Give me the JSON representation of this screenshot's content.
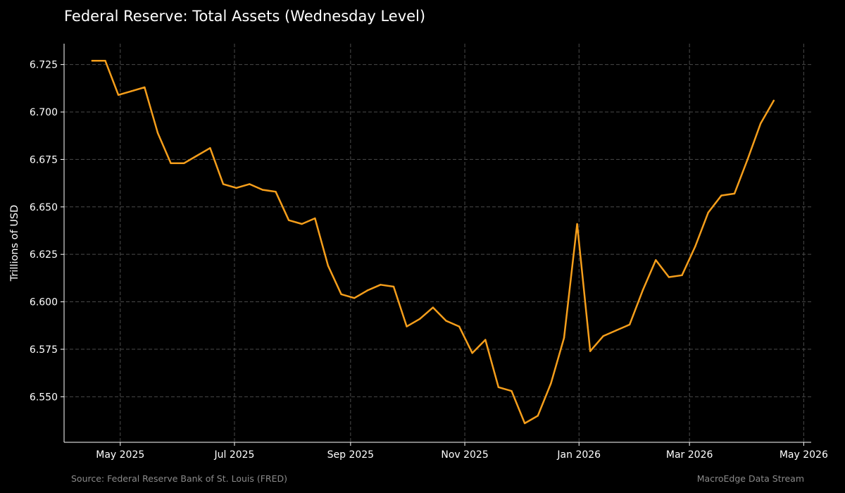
{
  "title": "Federal Reserve: Total Assets (Wednesday Level)",
  "source": "Source: Federal Reserve Bank of St. Louis (FRED)",
  "brand": "MacroEdge Data Stream",
  "colors": {
    "background": "#000000",
    "line": "#f59e1b",
    "grid": "#4a4a4a",
    "axis": "#ffffff",
    "footer_text": "#8a8a8a"
  },
  "chart_data": {
    "type": "line",
    "title": "Federal Reserve: Total Assets (Wednesday Level)",
    "xlabel": "",
    "ylabel": "Trillions of USD",
    "grid": true,
    "xlim": [
      "2025-04-01",
      "2026-05-05"
    ],
    "ylim": [
      6.526,
      6.736
    ],
    "x_ticks": [
      {
        "date": "2025-05-01",
        "label": "May 2025"
      },
      {
        "date": "2025-07-01",
        "label": "Jul 2025"
      },
      {
        "date": "2025-09-01",
        "label": "Sep 2025"
      },
      {
        "date": "2025-11-01",
        "label": "Nov 2025"
      },
      {
        "date": "2026-01-01",
        "label": "Jan 2026"
      },
      {
        "date": "2026-03-01",
        "label": "Mar 2026"
      },
      {
        "date": "2026-05-01",
        "label": "May 2026"
      }
    ],
    "y_ticks": [
      {
        "value": 6.55,
        "label": "6.550"
      },
      {
        "value": 6.575,
        "label": "6.575"
      },
      {
        "value": 6.6,
        "label": "6.600"
      },
      {
        "value": 6.625,
        "label": "6.625"
      },
      {
        "value": 6.65,
        "label": "6.650"
      },
      {
        "value": 6.675,
        "label": "6.675"
      },
      {
        "value": 6.7,
        "label": "6.700"
      },
      {
        "value": 6.725,
        "label": "6.725"
      }
    ],
    "series": [
      {
        "color": "#f59e1b",
        "points": [
          [
            "2025-04-16",
            6.727
          ],
          [
            "2025-04-23",
            6.727
          ],
          [
            "2025-04-30",
            6.709
          ],
          [
            "2025-05-07",
            6.711
          ],
          [
            "2025-05-14",
            6.713
          ],
          [
            "2025-05-21",
            6.689
          ],
          [
            "2025-05-28",
            6.673
          ],
          [
            "2025-06-04",
            6.673
          ],
          [
            "2025-06-11",
            6.677
          ],
          [
            "2025-06-18",
            6.681
          ],
          [
            "2025-06-25",
            6.662
          ],
          [
            "2025-07-02",
            6.66
          ],
          [
            "2025-07-09",
            6.662
          ],
          [
            "2025-07-16",
            6.659
          ],
          [
            "2025-07-23",
            6.658
          ],
          [
            "2025-07-30",
            6.643
          ],
          [
            "2025-08-06",
            6.641
          ],
          [
            "2025-08-13",
            6.644
          ],
          [
            "2025-08-20",
            6.619
          ],
          [
            "2025-08-27",
            6.604
          ],
          [
            "2025-09-03",
            6.602
          ],
          [
            "2025-09-10",
            6.606
          ],
          [
            "2025-09-17",
            6.609
          ],
          [
            "2025-09-24",
            6.608
          ],
          [
            "2025-10-01",
            6.587
          ],
          [
            "2025-10-08",
            6.591
          ],
          [
            "2025-10-15",
            6.597
          ],
          [
            "2025-10-22",
            6.59
          ],
          [
            "2025-10-29",
            6.587
          ],
          [
            "2025-11-05",
            6.573
          ],
          [
            "2025-11-12",
            6.58
          ],
          [
            "2025-11-19",
            6.555
          ],
          [
            "2025-11-26",
            6.553
          ],
          [
            "2025-12-03",
            6.536
          ],
          [
            "2025-12-10",
            6.54
          ],
          [
            "2025-12-17",
            6.557
          ],
          [
            "2025-12-24",
            6.581
          ],
          [
            "2025-12-31",
            6.641
          ],
          [
            "2026-01-07",
            6.574
          ],
          [
            "2026-01-14",
            6.582
          ],
          [
            "2026-01-21",
            6.585
          ],
          [
            "2026-01-28",
            6.588
          ],
          [
            "2026-02-04",
            6.606
          ],
          [
            "2026-02-11",
            6.622
          ],
          [
            "2026-02-18",
            6.613
          ],
          [
            "2026-02-25",
            6.614
          ],
          [
            "2026-03-04",
            6.629
          ],
          [
            "2026-03-11",
            6.647
          ],
          [
            "2026-03-18",
            6.656
          ],
          [
            "2026-03-25",
            6.657
          ],
          [
            "2026-04-01",
            6.675
          ],
          [
            "2026-04-08",
            6.694
          ],
          [
            "2026-04-15",
            6.706
          ]
        ]
      }
    ]
  }
}
